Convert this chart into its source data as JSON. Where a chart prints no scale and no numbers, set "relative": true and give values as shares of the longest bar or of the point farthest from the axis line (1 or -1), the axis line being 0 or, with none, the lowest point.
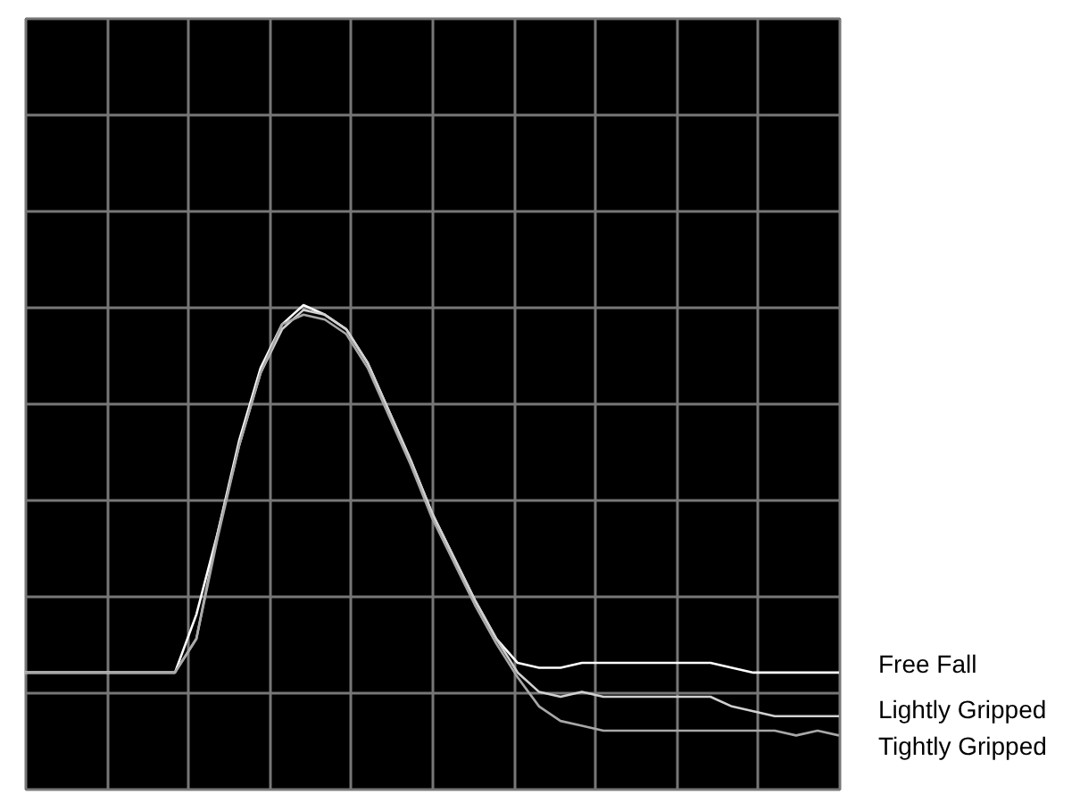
{
  "chart_data": {
    "type": "line",
    "relative": true,
    "grid": true,
    "marker": "none",
    "line_style": "solid",
    "categories": [
      null,
      null,
      null,
      null,
      null,
      null,
      null,
      null,
      null,
      null,
      null,
      null,
      null,
      null,
      null,
      null,
      null,
      null,
      null,
      null,
      null,
      null,
      null,
      null,
      null,
      null,
      null,
      null,
      null,
      null,
      null,
      null,
      null,
      null,
      null,
      null,
      null,
      null,
      null
    ],
    "series": [
      {
        "name": "Free Fall",
        "color": "#ffffff",
        "values": [
          0.24,
          0.24,
          0.24,
          0.24,
          0.24,
          0.24,
          0.24,
          0.24,
          0.36,
          0.53,
          0.72,
          0.87,
          0.96,
          1.0,
          0.98,
          0.95,
          0.88,
          0.78,
          0.68,
          0.57,
          0.48,
          0.39,
          0.31,
          0.26,
          0.25,
          0.25,
          0.26,
          0.26,
          0.26,
          0.26,
          0.26,
          0.26,
          0.26,
          0.25,
          0.24,
          0.24,
          0.24,
          0.24,
          0.24
        ]
      },
      {
        "name": "Lightly Gripped",
        "color": "#d0d0d0",
        "values": [
          0.24,
          0.24,
          0.24,
          0.24,
          0.24,
          0.24,
          0.24,
          0.24,
          0.31,
          0.53,
          0.71,
          0.86,
          0.95,
          0.99,
          0.98,
          0.95,
          0.88,
          0.78,
          0.68,
          0.57,
          0.48,
          0.39,
          0.31,
          0.24,
          0.2,
          0.19,
          0.2,
          0.19,
          0.19,
          0.19,
          0.19,
          0.19,
          0.19,
          0.17,
          0.16,
          0.15,
          0.15,
          0.15,
          0.15
        ]
      },
      {
        "name": "Tightly Gripped",
        "color": "#a8a8a8",
        "values": [
          0.24,
          0.24,
          0.24,
          0.24,
          0.24,
          0.24,
          0.24,
          0.24,
          0.31,
          0.52,
          0.71,
          0.86,
          0.96,
          0.98,
          0.97,
          0.94,
          0.87,
          0.77,
          0.67,
          0.56,
          0.47,
          0.38,
          0.3,
          0.23,
          0.17,
          0.14,
          0.13,
          0.12,
          0.12,
          0.12,
          0.12,
          0.12,
          0.12,
          0.12,
          0.12,
          0.12,
          0.11,
          0.12,
          0.11
        ]
      }
    ]
  }
}
